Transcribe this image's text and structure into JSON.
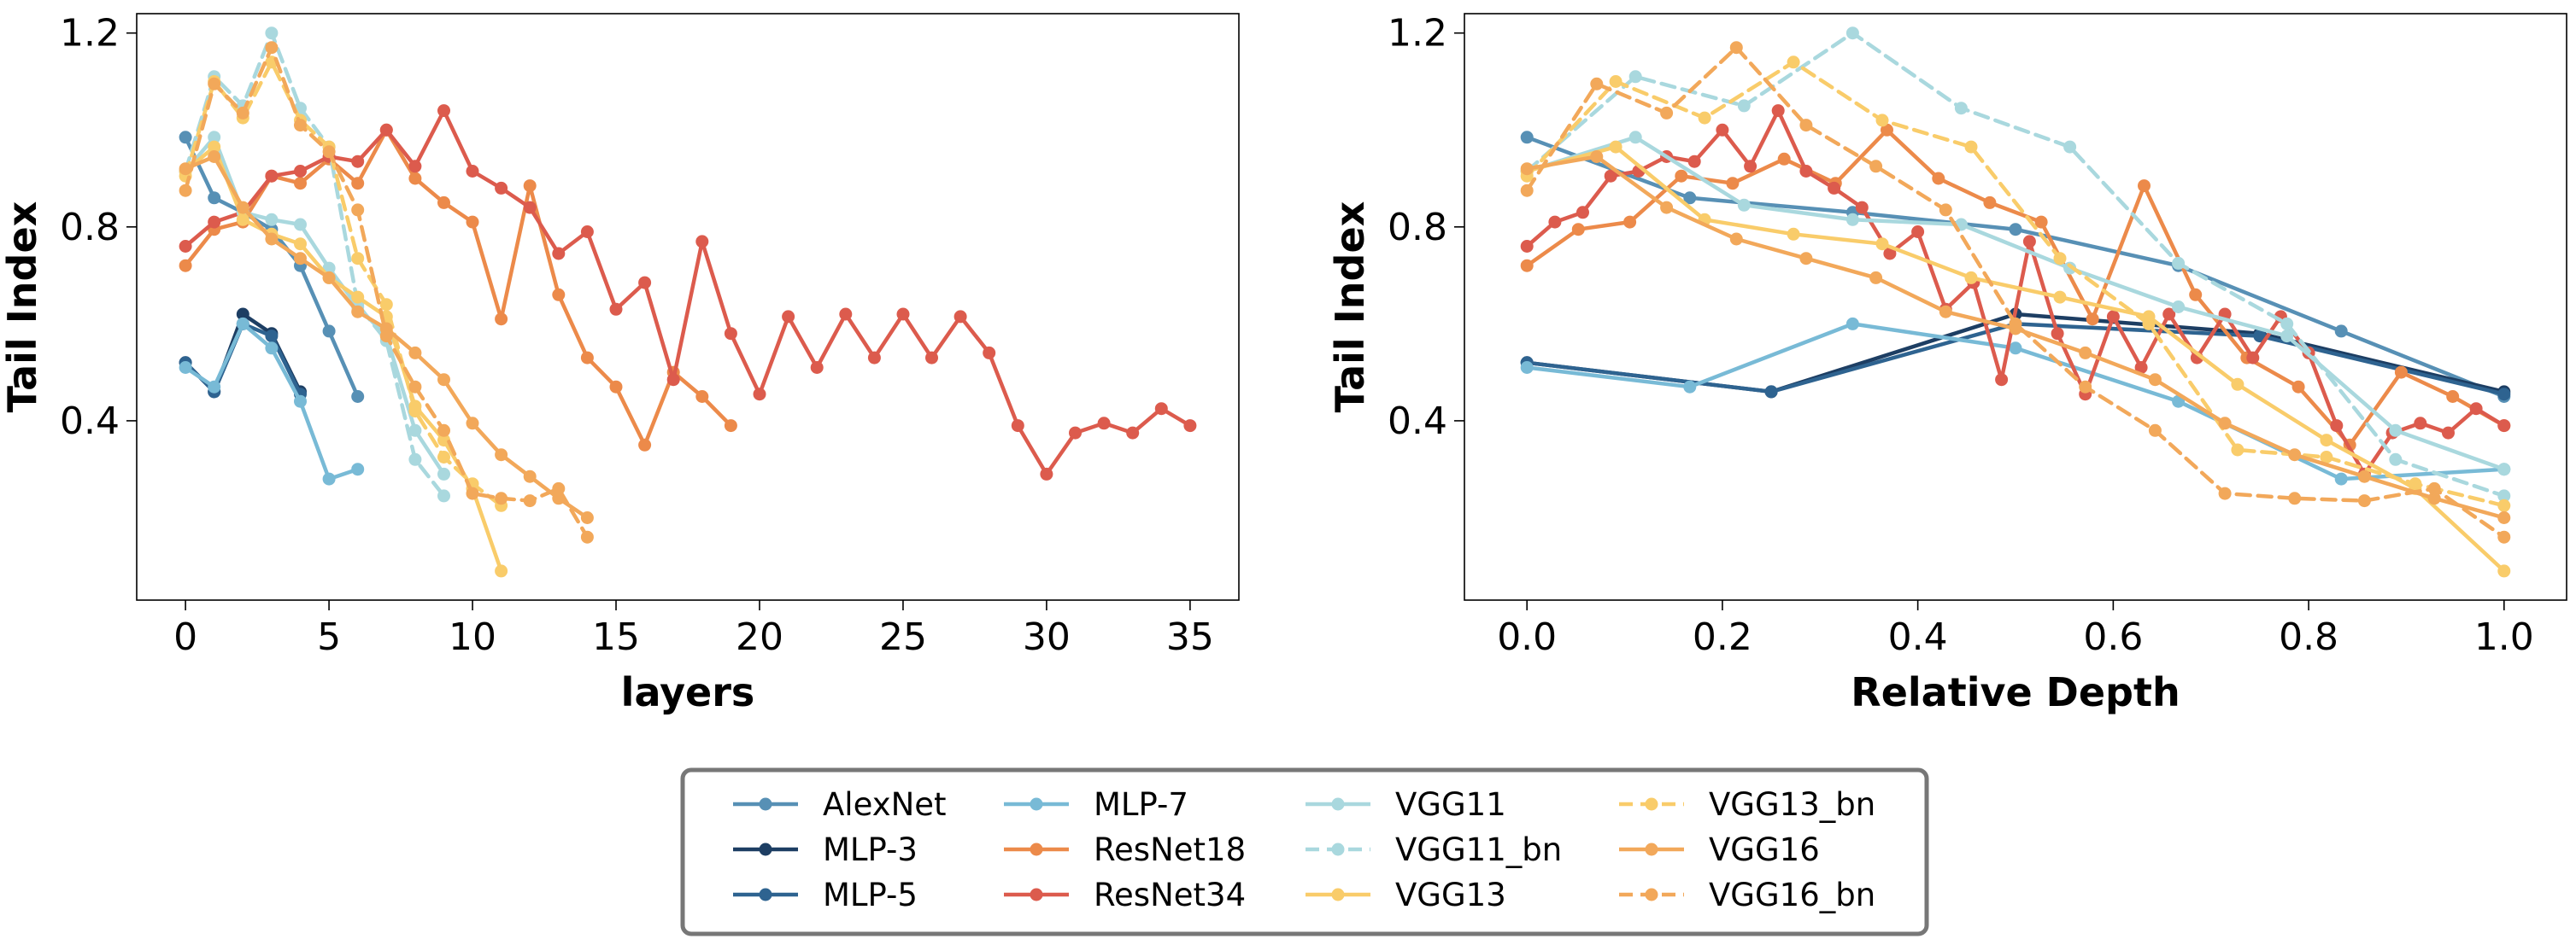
{
  "chart_data": [
    {
      "type": "line",
      "xlabel": "layers",
      "ylabel": "Tail Index",
      "xlim": [
        -1.7,
        36.7
      ],
      "ylim": [
        0.03,
        1.24
      ],
      "xticks": [
        0,
        5,
        10,
        15,
        20,
        25,
        30,
        35
      ],
      "xtick_labels": [
        "0",
        "5",
        "10",
        "15",
        "20",
        "25",
        "30",
        "35"
      ],
      "yticks": [
        0.4,
        0.8,
        1.2
      ],
      "ytick_labels": [
        "0.4",
        "0.8",
        "1.2"
      ],
      "grid": false,
      "series": [
        {
          "name": "AlexNet",
          "x": [
            0,
            1,
            2,
            3,
            4,
            5,
            6
          ],
          "y": [
            0.985,
            0.86,
            0.83,
            0.795,
            0.72,
            0.585,
            0.45
          ]
        },
        {
          "name": "MLP-3",
          "x": [
            0,
            1,
            2,
            3,
            4
          ],
          "y": [
            0.52,
            0.46,
            0.62,
            0.58,
            0.46
          ]
        },
        {
          "name": "MLP-5",
          "x": [
            0,
            1,
            2,
            3,
            4
          ],
          "y": [
            0.52,
            0.46,
            0.6,
            0.575,
            0.455
          ]
        },
        {
          "name": "MLP-7",
          "x": [
            0,
            1,
            2,
            3,
            4,
            5,
            6
          ],
          "y": [
            0.51,
            0.47,
            0.6,
            0.55,
            0.44,
            0.28,
            0.3
          ]
        },
        {
          "name": "ResNet18",
          "x": [
            0,
            1,
            2,
            3,
            4,
            5,
            6,
            7,
            8,
            9,
            10,
            11,
            12,
            13,
            14,
            15,
            16,
            17,
            18,
            19
          ],
          "y": [
            0.72,
            0.795,
            0.81,
            0.905,
            0.89,
            0.94,
            0.89,
            1.0,
            0.9,
            0.85,
            0.81,
            0.61,
            0.885,
            0.66,
            0.53,
            0.47,
            0.35,
            0.5,
            0.45,
            0.39
          ]
        },
        {
          "name": "ResNet34",
          "x": [
            0,
            1,
            2,
            3,
            4,
            5,
            6,
            7,
            8,
            9,
            10,
            11,
            12,
            13,
            14,
            15,
            16,
            17,
            18,
            19,
            20,
            21,
            22,
            23,
            24,
            25,
            26,
            27,
            28,
            29,
            30,
            31,
            32,
            33,
            34,
            35
          ],
          "y": [
            0.76,
            0.81,
            0.83,
            0.905,
            0.915,
            0.945,
            0.935,
            1.0,
            0.925,
            1.04,
            0.915,
            0.88,
            0.84,
            0.745,
            0.79,
            0.63,
            0.685,
            0.485,
            0.77,
            0.58,
            0.455,
            0.615,
            0.51,
            0.62,
            0.53,
            0.62,
            0.53,
            0.615,
            0.54,
            0.39,
            0.29,
            0.375,
            0.395,
            0.375,
            0.425,
            0.39
          ]
        },
        {
          "name": "VGG11",
          "x": [
            0,
            1,
            2,
            3,
            4,
            5,
            6,
            7,
            8,
            9
          ],
          "y": [
            0.915,
            0.985,
            0.83,
            0.815,
            0.805,
            0.715,
            0.635,
            0.575,
            0.38,
            0.29
          ]
        },
        {
          "name": "VGG11_bn",
          "x": [
            0,
            1,
            2,
            3,
            4,
            5,
            6,
            7,
            8,
            9
          ],
          "y": [
            0.915,
            1.11,
            1.05,
            1.2,
            1.045,
            0.965,
            0.64,
            0.565,
            0.32,
            0.245
          ]
        },
        {
          "name": "VGG13",
          "x": [
            0,
            1,
            2,
            3,
            4,
            5,
            6,
            7,
            8,
            9,
            10,
            11
          ],
          "y": [
            0.915,
            0.965,
            0.815,
            0.785,
            0.765,
            0.695,
            0.655,
            0.615,
            0.43,
            0.36,
            0.26,
            0.09
          ]
        },
        {
          "name": "VGG13_bn",
          "x": [
            0,
            1,
            2,
            3,
            4,
            5,
            6,
            7,
            8,
            9,
            10,
            11
          ],
          "y": [
            0.905,
            1.1,
            1.025,
            1.14,
            1.02,
            0.965,
            0.735,
            0.64,
            0.42,
            0.325,
            0.27,
            0.225
          ]
        },
        {
          "name": "VGG16",
          "x": [
            0,
            1,
            2,
            3,
            4,
            5,
            6,
            7,
            8,
            9,
            10,
            11,
            12,
            13,
            14
          ],
          "y": [
            0.92,
            0.945,
            0.84,
            0.775,
            0.735,
            0.695,
            0.625,
            0.59,
            0.54,
            0.485,
            0.395,
            0.33,
            0.285,
            0.24,
            0.2
          ]
        },
        {
          "name": "VGG16_bn",
          "x": [
            0,
            1,
            2,
            3,
            4,
            5,
            6,
            7,
            8,
            9,
            10,
            11,
            12,
            13,
            14
          ],
          "y": [
            0.875,
            1.095,
            1.035,
            1.17,
            1.01,
            0.955,
            0.835,
            0.575,
            0.47,
            0.38,
            0.25,
            0.24,
            0.235,
            0.26,
            0.16
          ]
        }
      ]
    },
    {
      "type": "line",
      "xlabel": "Relative Depth",
      "ylabel": "Tail Index",
      "xlim": [
        -0.064,
        1.064
      ],
      "ylim": [
        0.03,
        1.24
      ],
      "xticks": [
        0.0,
        0.2,
        0.4,
        0.6,
        0.8,
        1.0
      ],
      "xtick_labels": [
        "0.0",
        "0.2",
        "0.4",
        "0.6",
        "0.8",
        "1.0"
      ],
      "yticks": [
        0.4,
        0.8,
        1.2
      ],
      "ytick_labels": [
        "0.4",
        "0.8",
        "1.2"
      ],
      "grid": false,
      "series": [
        {
          "name": "AlexNet",
          "x": [
            0,
            0.1667,
            0.3333,
            0.5,
            0.6667,
            0.8333,
            1.0
          ],
          "y": [
            0.985,
            0.86,
            0.83,
            0.795,
            0.72,
            0.585,
            0.45
          ]
        },
        {
          "name": "MLP-3",
          "x": [
            0,
            0.25,
            0.5,
            0.75,
            1.0
          ],
          "y": [
            0.52,
            0.46,
            0.62,
            0.58,
            0.46
          ]
        },
        {
          "name": "MLP-5",
          "x": [
            0,
            0.25,
            0.5,
            0.75,
            1.0
          ],
          "y": [
            0.52,
            0.46,
            0.6,
            0.575,
            0.455
          ]
        },
        {
          "name": "MLP-7",
          "x": [
            0,
            0.1667,
            0.3333,
            0.5,
            0.6667,
            0.8333,
            1.0
          ],
          "y": [
            0.51,
            0.47,
            0.6,
            0.55,
            0.44,
            0.28,
            0.3
          ]
        },
        {
          "name": "ResNet18",
          "x": [
            0,
            0.0526,
            0.1053,
            0.1579,
            0.2105,
            0.2632,
            0.3158,
            0.3684,
            0.4211,
            0.4737,
            0.5263,
            0.5789,
            0.6316,
            0.6842,
            0.7368,
            0.7895,
            0.8421,
            0.8947,
            0.9474,
            1.0
          ],
          "y": [
            0.72,
            0.795,
            0.81,
            0.905,
            0.89,
            0.94,
            0.89,
            1.0,
            0.9,
            0.85,
            0.81,
            0.61,
            0.885,
            0.66,
            0.53,
            0.47,
            0.35,
            0.5,
            0.45,
            0.39
          ]
        },
        {
          "name": "ResNet34",
          "x": [
            0,
            0.0286,
            0.0571,
            0.0857,
            0.1143,
            0.1429,
            0.1714,
            0.2,
            0.2286,
            0.2571,
            0.2857,
            0.3143,
            0.3429,
            0.3714,
            0.4,
            0.4286,
            0.4571,
            0.4857,
            0.5143,
            0.5429,
            0.5714,
            0.6,
            0.6286,
            0.6571,
            0.6857,
            0.7143,
            0.7429,
            0.7714,
            0.8,
            0.8286,
            0.8571,
            0.8857,
            0.9143,
            0.9429,
            0.9714,
            1.0
          ],
          "y": [
            0.76,
            0.81,
            0.83,
            0.905,
            0.915,
            0.945,
            0.935,
            1.0,
            0.925,
            1.04,
            0.915,
            0.88,
            0.84,
            0.745,
            0.79,
            0.63,
            0.685,
            0.485,
            0.77,
            0.58,
            0.455,
            0.615,
            0.51,
            0.62,
            0.53,
            0.62,
            0.53,
            0.615,
            0.54,
            0.39,
            0.29,
            0.375,
            0.395,
            0.375,
            0.425,
            0.39
          ]
        },
        {
          "name": "VGG11",
          "x": [
            0,
            0.1111,
            0.2222,
            0.3333,
            0.4444,
            0.5556,
            0.6667,
            0.7778,
            0.8889,
            1.0
          ],
          "y": [
            0.915,
            0.985,
            0.845,
            0.815,
            0.805,
            0.715,
            0.635,
            0.575,
            0.38,
            0.3
          ]
        },
        {
          "name": "VGG11_bn",
          "x": [
            0,
            0.1111,
            0.2222,
            0.3333,
            0.4444,
            0.5556,
            0.6667,
            0.7778,
            0.8889,
            1.0
          ],
          "y": [
            0.915,
            1.11,
            1.05,
            1.2,
            1.045,
            0.965,
            0.725,
            0.6,
            0.32,
            0.245
          ]
        },
        {
          "name": "VGG13",
          "x": [
            0,
            0.0909,
            0.1818,
            0.2727,
            0.3636,
            0.4545,
            0.5455,
            0.6364,
            0.7273,
            0.8182,
            0.9091,
            1.0
          ],
          "y": [
            0.915,
            0.965,
            0.815,
            0.785,
            0.765,
            0.695,
            0.655,
            0.615,
            0.475,
            0.36,
            0.26,
            0.09
          ]
        },
        {
          "name": "VGG13_bn",
          "x": [
            0,
            0.0909,
            0.1818,
            0.2727,
            0.3636,
            0.4545,
            0.5455,
            0.6364,
            0.7273,
            0.8182,
            0.9091,
            1.0
          ],
          "y": [
            0.905,
            1.1,
            1.025,
            1.14,
            1.02,
            0.965,
            0.735,
            0.6,
            0.34,
            0.325,
            0.27,
            0.225
          ]
        },
        {
          "name": "VGG16",
          "x": [
            0,
            0.0714,
            0.1429,
            0.2143,
            0.2857,
            0.3571,
            0.4286,
            0.5,
            0.5714,
            0.6429,
            0.7143,
            0.7857,
            0.8571,
            0.9286,
            1.0
          ],
          "y": [
            0.92,
            0.945,
            0.84,
            0.775,
            0.735,
            0.695,
            0.625,
            0.59,
            0.54,
            0.485,
            0.395,
            0.33,
            0.285,
            0.24,
            0.2
          ]
        },
        {
          "name": "VGG16_bn",
          "x": [
            0,
            0.0714,
            0.1429,
            0.2143,
            0.2857,
            0.3571,
            0.4286,
            0.5,
            0.5714,
            0.6429,
            0.7143,
            0.7857,
            0.8571,
            0.9286,
            1.0
          ],
          "y": [
            0.875,
            1.095,
            1.035,
            1.17,
            1.01,
            0.925,
            0.835,
            0.6,
            0.47,
            0.38,
            0.25,
            0.24,
            0.235,
            0.26,
            0.16
          ]
        }
      ]
    }
  ],
  "series_styles": {
    "AlexNet": {
      "color": "#5790b5",
      "dash": false
    },
    "MLP-3": {
      "color": "#1d3e63",
      "dash": false
    },
    "MLP-5": {
      "color": "#2e6390",
      "dash": false
    },
    "MLP-7": {
      "color": "#78bad6",
      "dash": false
    },
    "ResNet18": {
      "color": "#ec8a4a",
      "dash": false
    },
    "ResNet34": {
      "color": "#dc5b4d",
      "dash": false
    },
    "VGG11": {
      "color": "#a9d8de",
      "dash": false
    },
    "VGG11_bn": {
      "color": "#a9d8de",
      "dash": true
    },
    "VGG13": {
      "color": "#f9cc6a",
      "dash": false
    },
    "VGG13_bn": {
      "color": "#f9cc6a",
      "dash": true
    },
    "VGG16": {
      "color": "#f2a85a",
      "dash": false
    },
    "VGG16_bn": {
      "color": "#f2a85a",
      "dash": true
    }
  },
  "legend": {
    "position": "bottom-center",
    "columns": [
      [
        "AlexNet",
        "MLP-3",
        "MLP-5"
      ],
      [
        "MLP-7",
        "ResNet18",
        "ResNet34"
      ],
      [
        "VGG11",
        "VGG11_bn",
        "VGG13"
      ],
      [
        "VGG13_bn",
        "VGG16",
        "VGG16_bn"
      ]
    ]
  }
}
